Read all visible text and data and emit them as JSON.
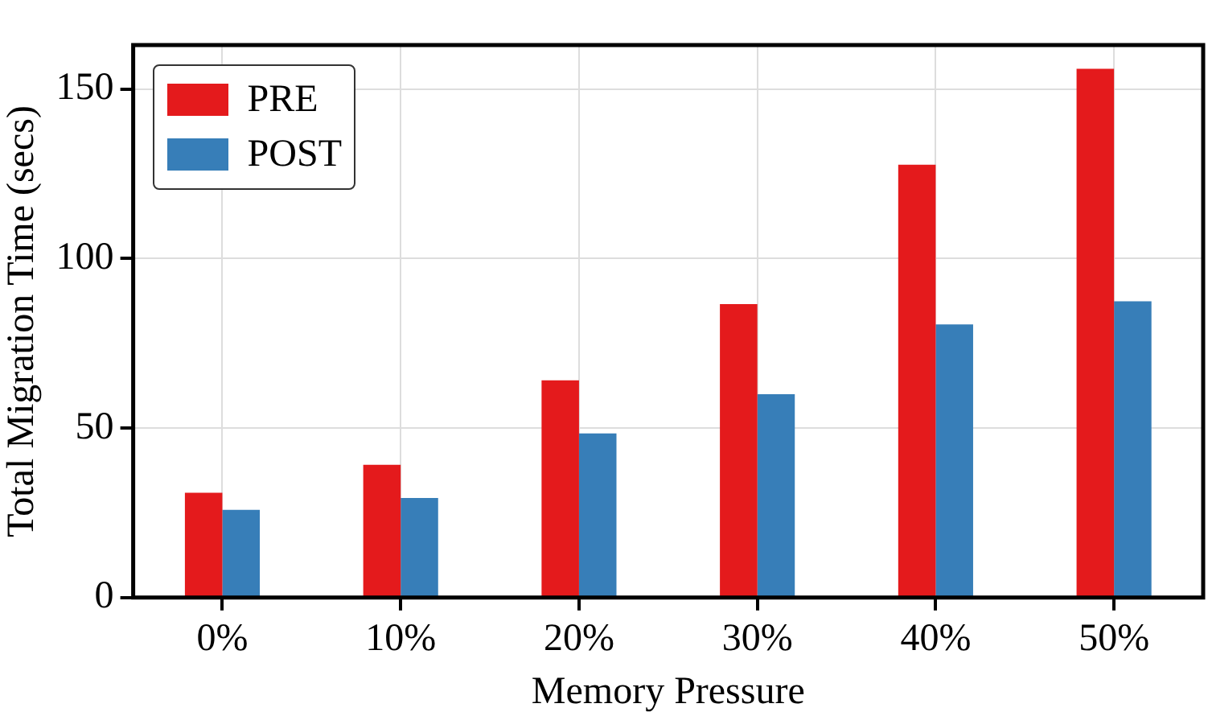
{
  "chart_data": {
    "type": "bar",
    "xlabel": "Memory Pressure",
    "ylabel": "Total Migration Time (secs)",
    "categories": [
      "0%",
      "10%",
      "20%",
      "30%",
      "40%",
      "50%"
    ],
    "series": [
      {
        "name": "PRE",
        "color": "#e41a1c",
        "values": [
          30.9,
          39.2,
          64.1,
          86.6,
          127.7,
          156
        ]
      },
      {
        "name": "POST",
        "color": "#377eb8",
        "values": [
          25.9,
          29.4,
          48.4,
          60,
          80.6,
          87.4
        ]
      }
    ],
    "ylim": [
      0,
      163
    ],
    "yticks": [
      0,
      50,
      100,
      150
    ],
    "grid": true,
    "legend": "top left"
  }
}
